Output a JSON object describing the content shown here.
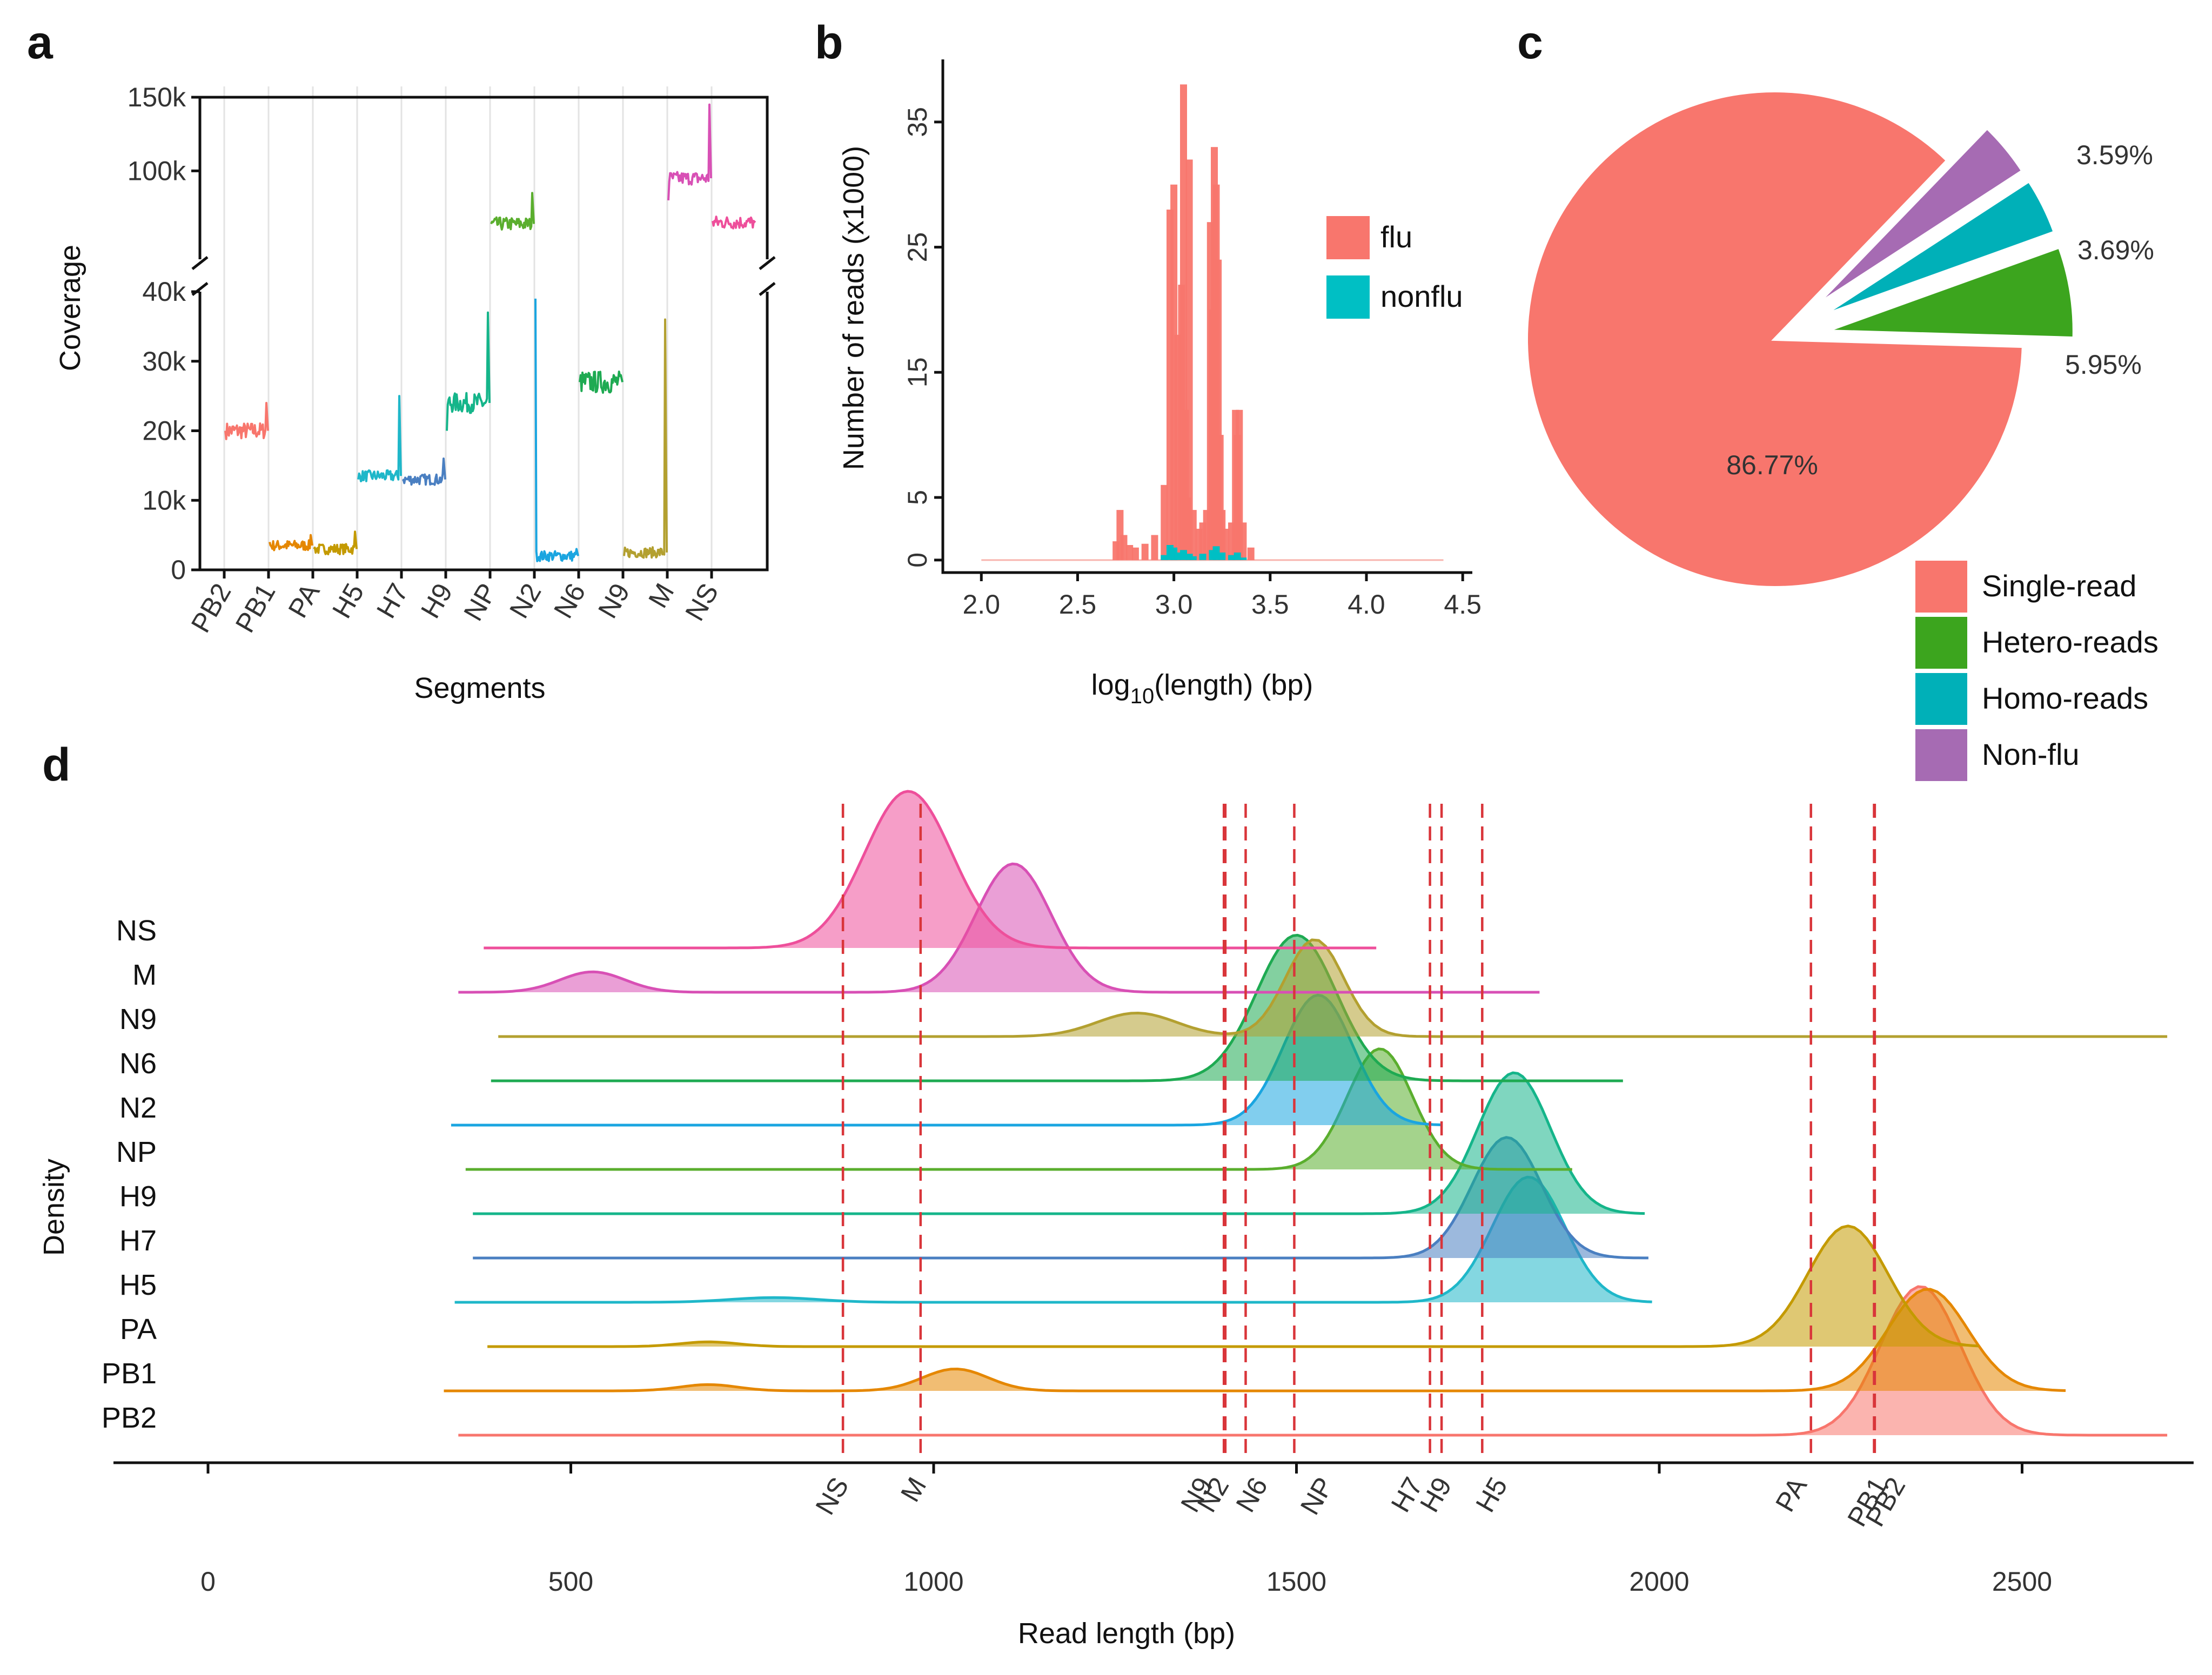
{
  "panel_labels": {
    "a": "a",
    "b": "b",
    "c": "c",
    "d": "d"
  },
  "chart_data": [
    {
      "id": "a",
      "type": "line",
      "xlabel": "Segments",
      "ylabel": "Coverage",
      "ylim_lower": [
        0,
        40000
      ],
      "ylim_upper": [
        40000,
        150000
      ],
      "y_ticks_lower": [
        {
          "v": 0,
          "label": "0"
        },
        {
          "v": 10000,
          "label": "10k"
        },
        {
          "v": 20000,
          "label": "20k"
        },
        {
          "v": 30000,
          "label": "30k"
        },
        {
          "v": 40000,
          "label": "40k"
        }
      ],
      "y_ticks_upper": [
        {
          "v": 100000,
          "label": "100k"
        },
        {
          "v": 150000,
          "label": "150k"
        }
      ],
      "categories": [
        "PB2",
        "PB1",
        "PA",
        "H5",
        "H7",
        "H9",
        "NP",
        "N2",
        "N6",
        "N9",
        "M",
        "NS"
      ],
      "segments": [
        {
          "name": "PB2",
          "color": "#f8766d",
          "base": 20000,
          "start": 20000,
          "end_spike": 24000
        },
        {
          "name": "PB1",
          "color": "#e58700",
          "base": 3500,
          "start": 4000,
          "end_spike": 5000
        },
        {
          "name": "PA",
          "color": "#c49a00",
          "base": 3000,
          "start": 3000,
          "end_spike": 5500
        },
        {
          "name": "H5",
          "color": "#1fb7c9",
          "base": 13500,
          "start": 13000,
          "end_spike": 25000
        },
        {
          "name": "H7",
          "color": "#4a7fc1",
          "base": 13000,
          "start": 13000,
          "end_spike": 16000
        },
        {
          "name": "H9",
          "color": "#15b58a",
          "base": 24000,
          "start": 20000,
          "end_spike": 37000
        },
        {
          "name": "NP",
          "color": "#5aae2e",
          "base": 64000,
          "start": 64000,
          "end_spike": 85000
        },
        {
          "name": "N2",
          "color": "#1aa5e0",
          "base": 2000,
          "start": 39000,
          "end_spike": 3000
        },
        {
          "name": "N6",
          "color": "#1eaa52",
          "base": 27000,
          "start": 27000,
          "end_spike": 28000
        },
        {
          "name": "N9",
          "color": "#b3a030",
          "base": 2500,
          "start": 2000,
          "end_spike": 36000
        },
        {
          "name": "M",
          "color": "#d850b5",
          "base": 95000,
          "start": 80000,
          "end_spike": 145000
        },
        {
          "name": "NS",
          "color": "#ee4f9b",
          "base": 65000,
          "start": 66000,
          "end_spike": 66000
        }
      ]
    },
    {
      "id": "b",
      "type": "bar",
      "title": "",
      "xlabel_parts": {
        "pre": "log",
        "sub": "10",
        "post": "(length) (bp)"
      },
      "ylabel": "Number of reads (x1000)",
      "xlim": [
        1.8,
        4.55
      ],
      "ylim": [
        -1,
        40
      ],
      "x_ticks": [
        {
          "v": 2.0,
          "label": "2.0"
        },
        {
          "v": 2.5,
          "label": "2.5"
        },
        {
          "v": 3.0,
          "label": "3.0"
        },
        {
          "v": 3.5,
          "label": "3.5"
        },
        {
          "v": 4.0,
          "label": "4.0"
        },
        {
          "v": 4.5,
          "label": "4.5"
        }
      ],
      "y_ticks": [
        {
          "v": 0,
          "label": "0"
        },
        {
          "v": 5,
          "label": "5"
        },
        {
          "v": 15,
          "label": "15"
        },
        {
          "v": 25,
          "label": "25"
        },
        {
          "v": 35,
          "label": "35"
        }
      ],
      "legend": [
        {
          "name": "flu",
          "color": "#f8766d"
        },
        {
          "name": "nonflu",
          "color": "#00bfc4"
        }
      ],
      "series": [
        {
          "name": "flu",
          "color": "#f8766d",
          "x": [
            2.7,
            2.72,
            2.74,
            2.77,
            2.8,
            2.85,
            2.9,
            2.95,
            2.98,
            3.0,
            3.02,
            3.04,
            3.05,
            3.06,
            3.07,
            3.08,
            3.1,
            3.13,
            3.15,
            3.17,
            3.19,
            3.2,
            3.21,
            3.22,
            3.23,
            3.24,
            3.25,
            3.27,
            3.3,
            3.32,
            3.33,
            3.34,
            3.36,
            3.4
          ],
          "values": [
            1.5,
            4,
            2,
            1.2,
            1.0,
            1.3,
            2.0,
            6,
            28,
            30,
            18,
            22,
            38,
            12,
            5,
            32,
            4,
            2.5,
            3,
            4,
            27,
            20,
            33,
            30,
            24,
            10,
            4,
            2.5,
            3,
            12,
            10,
            12,
            3,
            1
          ]
        },
        {
          "name": "nonflu",
          "color": "#00bfc4",
          "x": [
            2.95,
            2.98,
            3.0,
            3.02,
            3.05,
            3.08,
            3.1,
            3.15,
            3.2,
            3.22,
            3.25,
            3.3,
            3.33,
            3.36
          ],
          "values": [
            0.4,
            1.2,
            1.0,
            0.6,
            0.8,
            0.5,
            0.3,
            0.5,
            0.8,
            1.1,
            0.6,
            0.4,
            0.6,
            0.2
          ]
        }
      ]
    },
    {
      "id": "c",
      "type": "pie",
      "slices": [
        {
          "name": "Single-read",
          "value": 86.77,
          "label": "86.77%",
          "color": "#f8766d"
        },
        {
          "name": "Hetero-reads",
          "value": 5.95,
          "label": "5.95%",
          "color": "#3ca51e"
        },
        {
          "name": "Homo-reads",
          "value": 3.69,
          "label": "3.69%",
          "color": "#00b0b8"
        },
        {
          "name": "Non-flu",
          "value": 3.59,
          "label": "3.59%",
          "color": "#a66bb3"
        }
      ]
    },
    {
      "id": "d",
      "type": "area",
      "subtype": "ridgeline",
      "xlabel": "Read length (bp)",
      "ylabel": "Density",
      "xlim": [
        0,
        2750
      ],
      "x_ticks": [
        {
          "v": 0,
          "label": "0"
        },
        {
          "v": 500,
          "label": "500"
        },
        {
          "v": 1000,
          "label": "1000"
        },
        {
          "v": 1500,
          "label": "1500"
        },
        {
          "v": 2000,
          "label": "2000"
        },
        {
          "v": 2500,
          "label": "2500"
        }
      ],
      "reference_lines": [
        {
          "name": "NS",
          "x": 875
        },
        {
          "name": "M",
          "x": 982
        },
        {
          "name": "N9",
          "x": 1400
        },
        {
          "name": "N2",
          "x": 1402
        },
        {
          "name": "N6",
          "x": 1430
        },
        {
          "name": "NP",
          "x": 1497
        },
        {
          "name": "H7",
          "x": 1684
        },
        {
          "name": "H9",
          "x": 1700
        },
        {
          "name": "H5",
          "x": 1756
        },
        {
          "name": "PA",
          "x": 2209
        },
        {
          "name": "PB1",
          "x": 2296
        },
        {
          "name": "PB2",
          "x": 2297
        }
      ],
      "series": [
        {
          "name": "NS",
          "color": "#ee4f9b",
          "x_range": [
            380,
            1610
          ],
          "peaks": [
            {
              "x": 965,
              "w": 60,
              "h": 1.0
            }
          ]
        },
        {
          "name": "M",
          "color": "#d850b5",
          "x_range": [
            345,
            1835
          ],
          "peaks": [
            {
              "x": 1110,
              "w": 52,
              "h": 0.82
            },
            {
              "x": 530,
              "w": 45,
              "h": 0.13
            }
          ]
        },
        {
          "name": "N9",
          "color": "#b3a030",
          "x_range": [
            400,
            2700
          ],
          "peaks": [
            {
              "x": 1525,
              "w": 40,
              "h": 0.62
            },
            {
              "x": 1280,
              "w": 55,
              "h": 0.15
            }
          ]
        },
        {
          "name": "N6",
          "color": "#1eaa52",
          "x_range": [
            390,
            1950
          ],
          "peaks": [
            {
              "x": 1500,
              "w": 55,
              "h": 0.93
            }
          ]
        },
        {
          "name": "N2",
          "color": "#1aa5e0",
          "x_range": [
            335,
            1700
          ],
          "peaks": [
            {
              "x": 1530,
              "w": 48,
              "h": 0.83
            }
          ]
        },
        {
          "name": "NP",
          "color": "#5aae2e",
          "x_range": [
            355,
            1880
          ],
          "peaks": [
            {
              "x": 1615,
              "w": 45,
              "h": 0.77
            }
          ]
        },
        {
          "name": "H9",
          "color": "#15b58a",
          "x_range": [
            365,
            1980
          ],
          "peaks": [
            {
              "x": 1800,
              "w": 50,
              "h": 0.9
            }
          ]
        },
        {
          "name": "H7",
          "color": "#4a7fc1",
          "x_range": [
            365,
            1985
          ],
          "peaks": [
            {
              "x": 1790,
              "w": 48,
              "h": 0.77
            }
          ]
        },
        {
          "name": "H5",
          "color": "#1fb7c9",
          "x_range": [
            340,
            1990
          ],
          "peaks": [
            {
              "x": 1820,
              "w": 50,
              "h": 0.8
            },
            {
              "x": 780,
              "w": 60,
              "h": 0.03
            }
          ]
        },
        {
          "name": "PA",
          "color": "#c49a00",
          "x_range": [
            385,
            2440
          ],
          "peaks": [
            {
              "x": 2260,
              "w": 55,
              "h": 0.77
            },
            {
              "x": 690,
              "w": 40,
              "h": 0.03
            }
          ]
        },
        {
          "name": "PB1",
          "color": "#e58700",
          "x_range": [
            325,
            2560
          ],
          "peaks": [
            {
              "x": 2370,
              "w": 55,
              "h": 0.65
            },
            {
              "x": 1030,
              "w": 45,
              "h": 0.14
            },
            {
              "x": 690,
              "w": 40,
              "h": 0.04
            }
          ]
        },
        {
          "name": "PB2",
          "color": "#f8766d",
          "x_range": [
            345,
            2700
          ],
          "peaks": [
            {
              "x": 2360,
              "w": 55,
              "h": 0.95
            }
          ]
        }
      ]
    }
  ]
}
